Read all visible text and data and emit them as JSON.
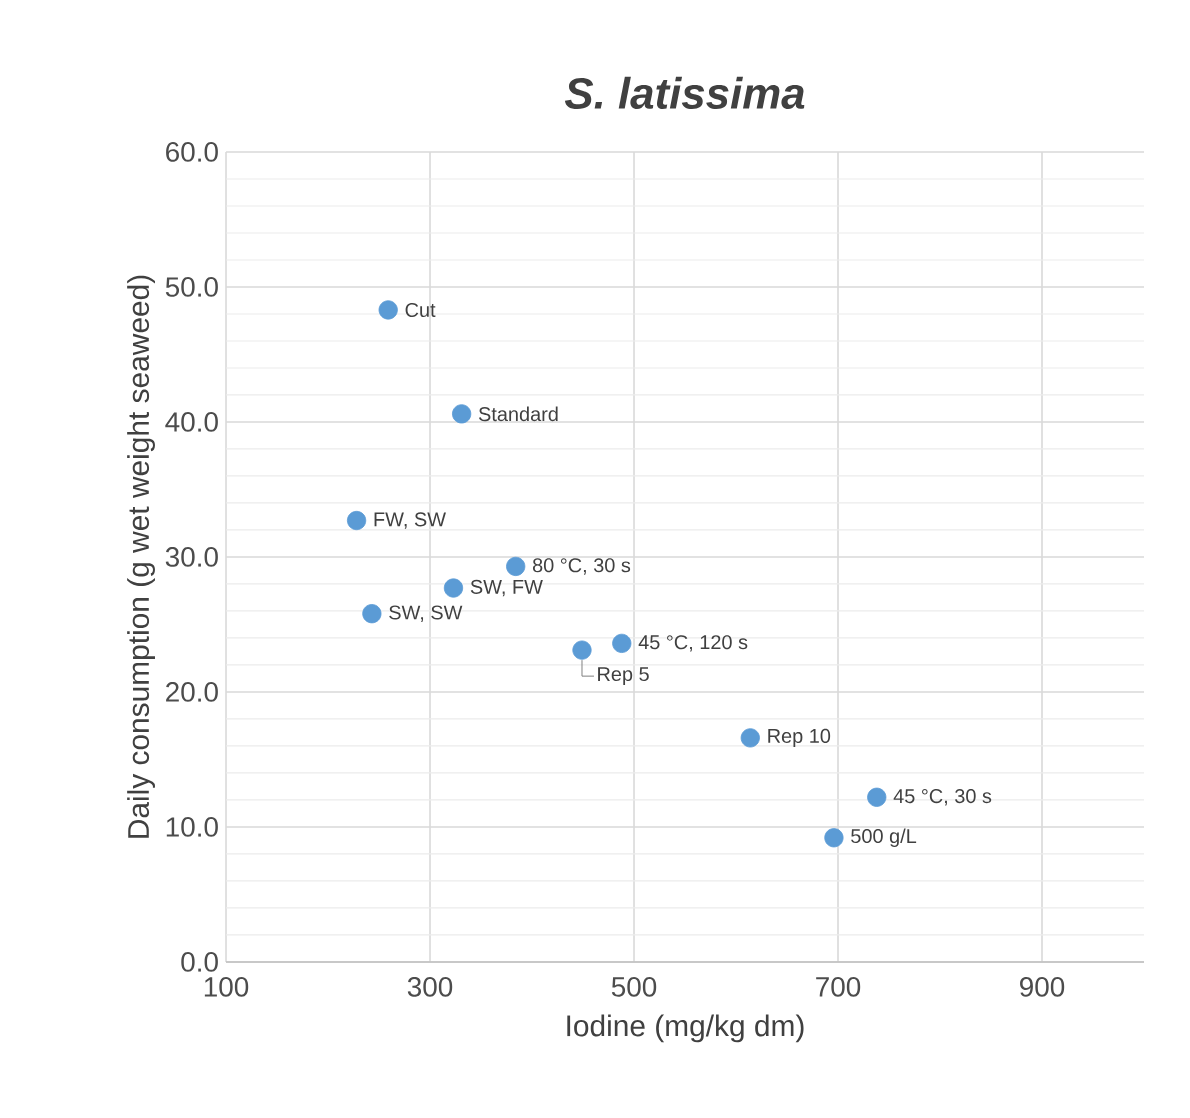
{
  "chart_data": {
    "type": "scatter",
    "title": "S. latissima",
    "xlabel": "Iodine (mg/kg dm)",
    "ylabel": "Daily consumption (g  wet weight seaweed)",
    "series": [
      {
        "color": "#5b9bd5",
        "x": [
          259,
          331,
          228,
          384,
          323,
          243,
          449,
          488,
          614,
          738,
          696
        ],
        "values": [
          48.3,
          40.6,
          32.7,
          29.3,
          27.7,
          25.8,
          23.1,
          23.6,
          16.6,
          12.2,
          9.2
        ]
      }
    ],
    "annotations": [
      {
        "text": "Cut",
        "x": 259,
        "y": 48.3
      },
      {
        "text": "Standard",
        "x": 331,
        "y": 40.6
      },
      {
        "text": "FW, SW",
        "x": 228,
        "y": 32.7
      },
      {
        "text": "80 °C, 30 s",
        "x": 384,
        "y": 29.3
      },
      {
        "text": "SW, FW",
        "x": 323,
        "y": 27.7
      },
      {
        "text": "SW, SW",
        "x": 243,
        "y": 25.8
      },
      {
        "text": "Rep 5",
        "x": 449,
        "y": 23.1
      },
      {
        "text": "45 °C, 120 s",
        "x": 488,
        "y": 23.6
      },
      {
        "text": "Rep 10",
        "x": 614,
        "y": 16.6
      },
      {
        "text": "45 °C, 30 s",
        "x": 738,
        "y": 12.2
      },
      {
        "text": "500 g/L",
        "x": 696,
        "y": 9.2
      }
    ],
    "xlim": [
      100,
      1000
    ],
    "xticks": [
      100,
      300,
      500,
      700,
      900
    ],
    "ylim": [
      0,
      60
    ],
    "yticks": [
      {
        "value": 0,
        "label": "0.0"
      },
      {
        "value": 10,
        "label": "10.0"
      },
      {
        "value": 20,
        "label": "20.0"
      },
      {
        "value": 30,
        "label": "30.0"
      },
      {
        "value": 40,
        "label": "40.0"
      },
      {
        "value": 50,
        "label": "50.0"
      },
      {
        "value": 60,
        "label": "60.0"
      }
    ],
    "grid": true,
    "marker": "circle"
  }
}
